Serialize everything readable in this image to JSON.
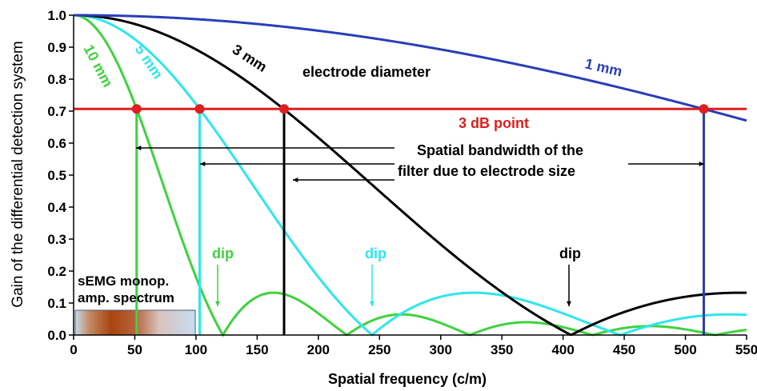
{
  "chart_data": {
    "type": "line",
    "xlabel": "Spatial frequency (c/m)",
    "ylabel": "Gain of the differential detection system",
    "xlim": [
      0,
      550
    ],
    "ylim": [
      0,
      1.0
    ],
    "xticks": [
      0,
      50,
      100,
      150,
      200,
      250,
      300,
      350,
      400,
      450,
      500,
      550
    ],
    "yticks": [
      0.0,
      0.1,
      0.2,
      0.3,
      0.4,
      0.5,
      0.6,
      0.7,
      0.8,
      0.9,
      1.0
    ],
    "xtick_labels": [
      "0",
      "50",
      "100",
      "150",
      "200",
      "250",
      "300",
      "350",
      "400",
      "450",
      "500",
      "550"
    ],
    "ytick_labels": [
      "0.0",
      "0.1",
      "0.2",
      "0.3",
      "0.4",
      "0.5",
      "0.6",
      "0.7",
      "0.8",
      "0.9",
      "1.0"
    ],
    "threshold": {
      "y": 0.707,
      "label": "3 dB point",
      "color": "#dd1f1f"
    },
    "series": [
      {
        "name": "10 mm",
        "color": "#3fd23f",
        "diameter_m": 0.01,
        "cutoff": 51.5
      },
      {
        "name": "5 mm",
        "color": "#2ee6ec",
        "diameter_m": 0.005,
        "cutoff": 103
      },
      {
        "name": "3 mm",
        "color": "#000000",
        "diameter_m": 0.003,
        "cutoff": 172
      },
      {
        "name": "1 mm",
        "color": "#2a3db8",
        "diameter_m": 0.001,
        "cutoff": 515
      }
    ],
    "annotations": {
      "electrode_diameter": "electrode diameter",
      "bandwidth_line1": "Spatial bandwidth of the",
      "bandwidth_line2": "filter due to electrode size",
      "dip": "dip",
      "semg_line1": "sEMG monop.",
      "semg_line2": "amp. spectrum"
    },
    "dips": [
      {
        "label": "dip",
        "color": "#3fd23f",
        "x": 122
      },
      {
        "label": "dip",
        "color": "#2ee6ec",
        "x": 244
      },
      {
        "label": "dip",
        "color": "#000000",
        "x": 402
      }
    ],
    "grid": false
  }
}
